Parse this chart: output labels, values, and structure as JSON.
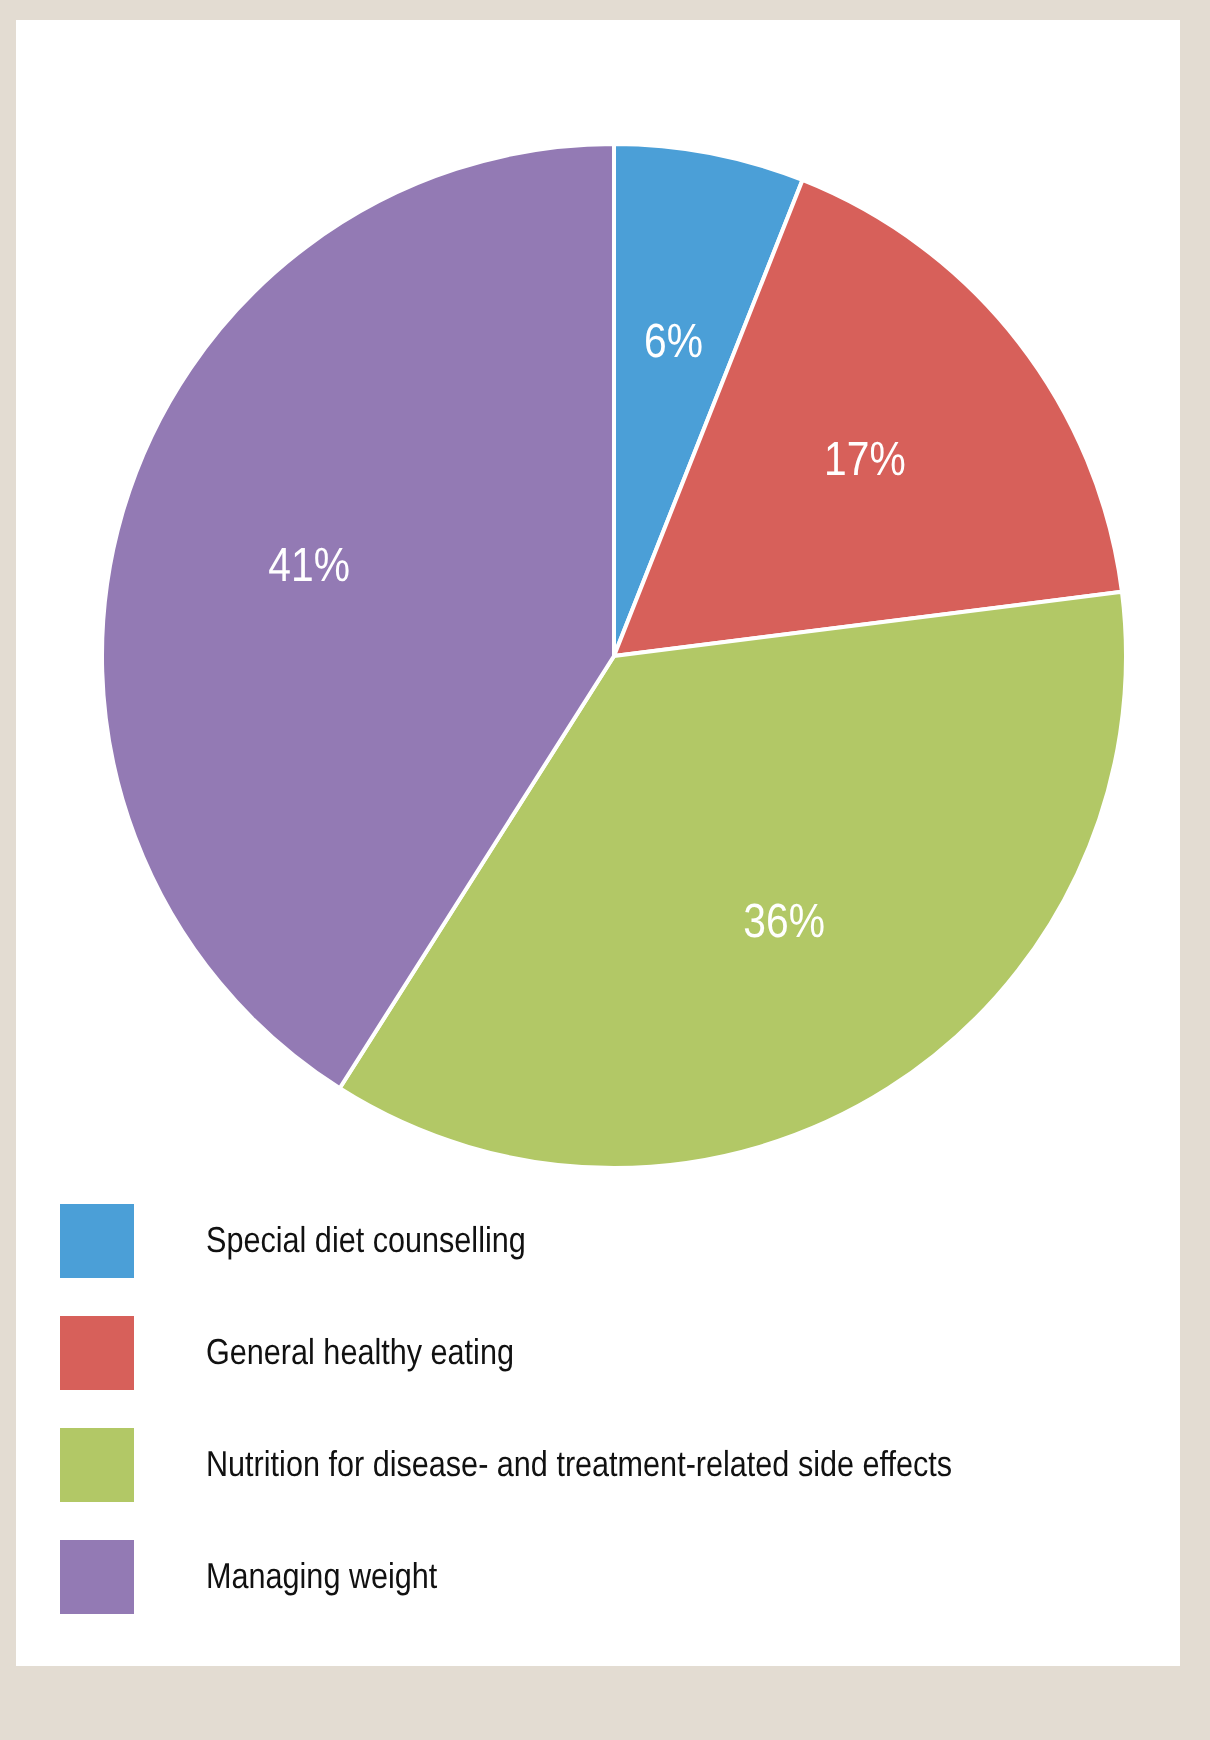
{
  "chart_data": {
    "type": "pie",
    "categories": [
      "Special diet counselling",
      "General healthy eating",
      "Nutrition for disease- and treatment-related side effects",
      "Managing weight"
    ],
    "values": [
      6,
      17,
      36,
      41
    ],
    "colors": [
      "#4b9fd7",
      "#d7605a",
      "#b2c866",
      "#937ab4"
    ],
    "value_labels": [
      "6%",
      "17%",
      "36%",
      "41%"
    ],
    "legend": "bottom"
  }
}
